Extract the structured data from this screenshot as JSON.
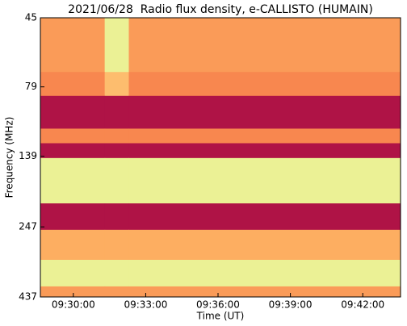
{
  "chart_data": {
    "type": "heatmap",
    "title": "2021/06/28  Radio flux density, e-CALLISTO (HUMAIN)",
    "x_label": "Time (UT)",
    "y_label": "Frequency (MHz)",
    "x_edges": [
      34118,
      34278,
      34338,
      35014
    ],
    "y_edges": [
      45,
      70,
      85,
      111,
      125,
      141,
      204,
      253,
      323,
      401,
      437
    ],
    "z": [
      [
        0.45,
        0.8,
        0.45
      ],
      [
        0.4,
        0.55,
        0.4
      ],
      [
        0.05,
        0.05,
        0.05
      ],
      [
        0.4,
        0.4,
        0.4
      ],
      [
        0.05,
        0.05,
        0.05
      ],
      [
        0.8,
        0.8,
        0.8
      ],
      [
        0.05,
        0.05,
        0.05
      ],
      [
        0.5,
        0.5,
        0.5
      ],
      [
        0.8,
        0.8,
        0.8
      ],
      [
        0.45,
        0.45,
        0.45
      ]
    ],
    "zlim": [
      0,
      1
    ],
    "colors": [
      "#9e0142",
      "#d53e4f",
      "#f46d43",
      "#fdae61",
      "#fee08b",
      "#e6f598",
      "#abdda4"
    ],
    "xlim": [
      34118,
      35014
    ],
    "xticks": [
      {
        "value": 34200,
        "label": "09:30:00"
      },
      {
        "value": 34380,
        "label": "09:33:00"
      },
      {
        "value": 34560,
        "label": "09:36:00"
      },
      {
        "value": 34740,
        "label": "09:39:00"
      },
      {
        "value": 34920,
        "label": "09:42:00"
      }
    ],
    "ylim": [
      45,
      437
    ],
    "yticks": [
      45,
      79,
      139,
      247,
      437
    ],
    "y_log": true,
    "y_inverted": true
  }
}
